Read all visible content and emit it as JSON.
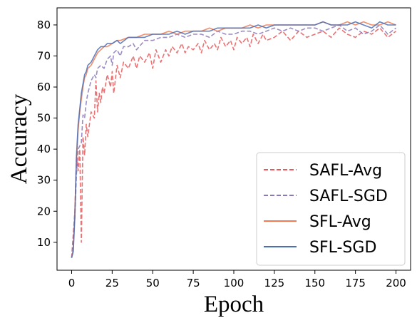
{
  "chart_data": {
    "type": "line",
    "title": "",
    "xlabel": "Epoch",
    "ylabel": "Accuracy",
    "xlim": [
      -9,
      209
    ],
    "ylim": [
      1,
      85.5
    ],
    "xticks": [
      0,
      25,
      50,
      75,
      100,
      125,
      150,
      175,
      200
    ],
    "yticks": [
      10,
      20,
      30,
      40,
      50,
      60,
      70,
      80
    ],
    "grid": false,
    "legend_position": "bottom-right",
    "series": [
      {
        "name": "SAFL-Avg",
        "color": "#e8585a",
        "dash": "dashed",
        "x": [
          0,
          2,
          3,
          4,
          5,
          6,
          7,
          8,
          9,
          10,
          12,
          14,
          15,
          16,
          17,
          18,
          19,
          20,
          22,
          24,
          25,
          26,
          28,
          30,
          32,
          35,
          38,
          40,
          42,
          45,
          48,
          50,
          52,
          55,
          58,
          60,
          62,
          65,
          68,
          70,
          72,
          75,
          78,
          80,
          82,
          85,
          88,
          90,
          92,
          95,
          98,
          100,
          102,
          105,
          108,
          110,
          112,
          115,
          118,
          120,
          125,
          130,
          135,
          140,
          145,
          150,
          155,
          160,
          165,
          170,
          175,
          180,
          185,
          190,
          195,
          200
        ],
        "values": [
          5,
          20,
          38,
          33,
          40,
          10,
          44,
          38,
          48,
          44,
          52,
          50,
          62,
          52,
          58,
          55,
          60,
          58,
          64,
          60,
          65,
          58,
          67,
          63,
          68,
          66,
          70,
          66,
          70,
          68,
          71,
          66,
          72,
          68,
          72,
          70,
          73,
          71,
          74,
          71,
          73,
          72,
          74,
          71,
          75,
          72,
          74,
          72,
          76,
          73,
          75,
          72,
          76,
          74,
          76,
          73,
          77,
          74,
          77,
          75,
          76,
          78,
          75,
          78,
          76,
          77,
          78,
          76,
          79,
          77,
          76,
          78,
          77,
          79,
          76,
          78
        ]
      },
      {
        "name": "SAFL-SGD",
        "color": "#8a78b8",
        "dash": "dashed",
        "x": [
          0,
          2,
          3,
          4,
          5,
          6,
          7,
          8,
          9,
          10,
          12,
          14,
          15,
          16,
          18,
          20,
          22,
          24,
          25,
          26,
          28,
          30,
          32,
          35,
          38,
          40,
          45,
          50,
          55,
          60,
          65,
          70,
          75,
          80,
          85,
          90,
          95,
          100,
          105,
          110,
          115,
          120,
          125,
          130,
          135,
          140,
          145,
          150,
          155,
          160,
          165,
          170,
          175,
          180,
          185,
          190,
          195,
          200
        ],
        "values": [
          5,
          18,
          32,
          40,
          41,
          42,
          51,
          50,
          55,
          58,
          62,
          64,
          63,
          66,
          67,
          66,
          69,
          70,
          67,
          71,
          72,
          70,
          73,
          73,
          74,
          72,
          75,
          75,
          76,
          76,
          77,
          76,
          77,
          77,
          76,
          78,
          77,
          77,
          78,
          78,
          77,
          78,
          79,
          78,
          79,
          78,
          79,
          79,
          78,
          79,
          80,
          78,
          79,
          77,
          78,
          80,
          77,
          79
        ]
      },
      {
        "name": "SFL-Avg",
        "color": "#f07b52",
        "dash": "solid",
        "x": [
          0,
          1,
          2,
          3,
          4,
          5,
          6,
          7,
          8,
          9,
          10,
          12,
          14,
          16,
          18,
          20,
          22,
          25,
          28,
          30,
          35,
          40,
          45,
          50,
          55,
          60,
          65,
          70,
          75,
          80,
          85,
          90,
          95,
          100,
          105,
          110,
          115,
          120,
          125,
          130,
          135,
          140,
          145,
          150,
          155,
          160,
          165,
          170,
          175,
          180,
          185,
          190,
          195,
          200
        ],
        "values": [
          5,
          8,
          20,
          36,
          46,
          52,
          56,
          60,
          63,
          64,
          66,
          67,
          69,
          71,
          72,
          73,
          73,
          74,
          75,
          75,
          76,
          76,
          77,
          77,
          77,
          78,
          77,
          78,
          78,
          78,
          79,
          78,
          79,
          79,
          79,
          80,
          79,
          80,
          80,
          80,
          80,
          80,
          80,
          80,
          81,
          80,
          80,
          81,
          80,
          81,
          80,
          80,
          81,
          80
        ]
      },
      {
        "name": "SFL-SGD",
        "color": "#4a6fb5",
        "dash": "solid",
        "x": [
          0,
          1,
          2,
          3,
          4,
          5,
          6,
          7,
          8,
          9,
          10,
          12,
          14,
          16,
          18,
          20,
          22,
          25,
          28,
          30,
          35,
          40,
          45,
          50,
          55,
          60,
          65,
          70,
          75,
          80,
          85,
          90,
          95,
          100,
          105,
          110,
          115,
          120,
          125,
          130,
          135,
          140,
          145,
          150,
          155,
          160,
          165,
          170,
          175,
          180,
          185,
          190,
          195,
          200
        ],
        "values": [
          5,
          7,
          18,
          38,
          48,
          53,
          58,
          61,
          64,
          65,
          67,
          68,
          70,
          72,
          73,
          73,
          74,
          74,
          75,
          74,
          76,
          76,
          76,
          77,
          77,
          77,
          78,
          77,
          78,
          78,
          78,
          79,
          79,
          79,
          79,
          79,
          80,
          79,
          80,
          80,
          80,
          80,
          80,
          80,
          81,
          80,
          80,
          80,
          81,
          80,
          79,
          81,
          80,
          80
        ]
      }
    ]
  }
}
